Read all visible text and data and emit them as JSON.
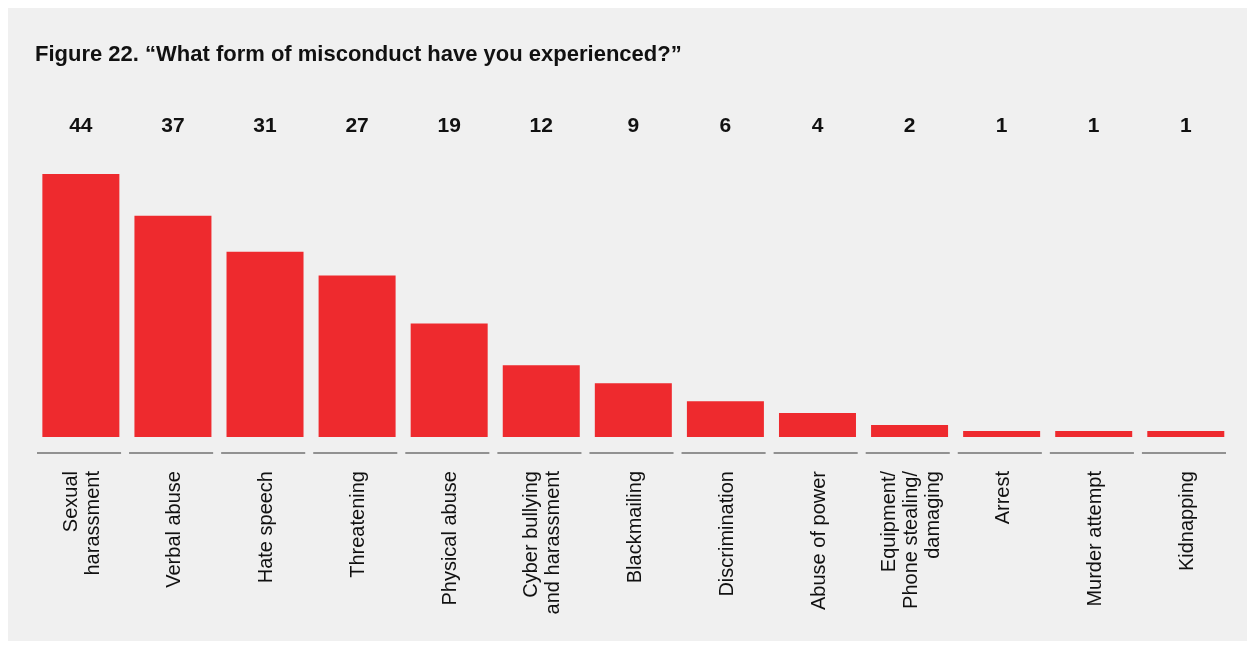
{
  "chart_data": {
    "type": "bar",
    "title": "Figure 22. “What form of misconduct have you experienced?”",
    "categories": [
      "Sexual harassment",
      "Verbal abuse",
      "Hate speech",
      "Threatening",
      "Physical abuse",
      "Cyber bullying and harassment",
      "Blackmailing",
      "Discrimination",
      "Abuse of power",
      "Equipment/ Phone stealing/ damaging",
      "Arrest",
      "Murder attempt",
      "Kidnapping"
    ],
    "values": [
      44,
      37,
      31,
      27,
      19,
      12,
      9,
      6,
      4,
      2,
      1,
      1,
      1
    ],
    "color": "#ee2a2e",
    "data_labels": true
  }
}
